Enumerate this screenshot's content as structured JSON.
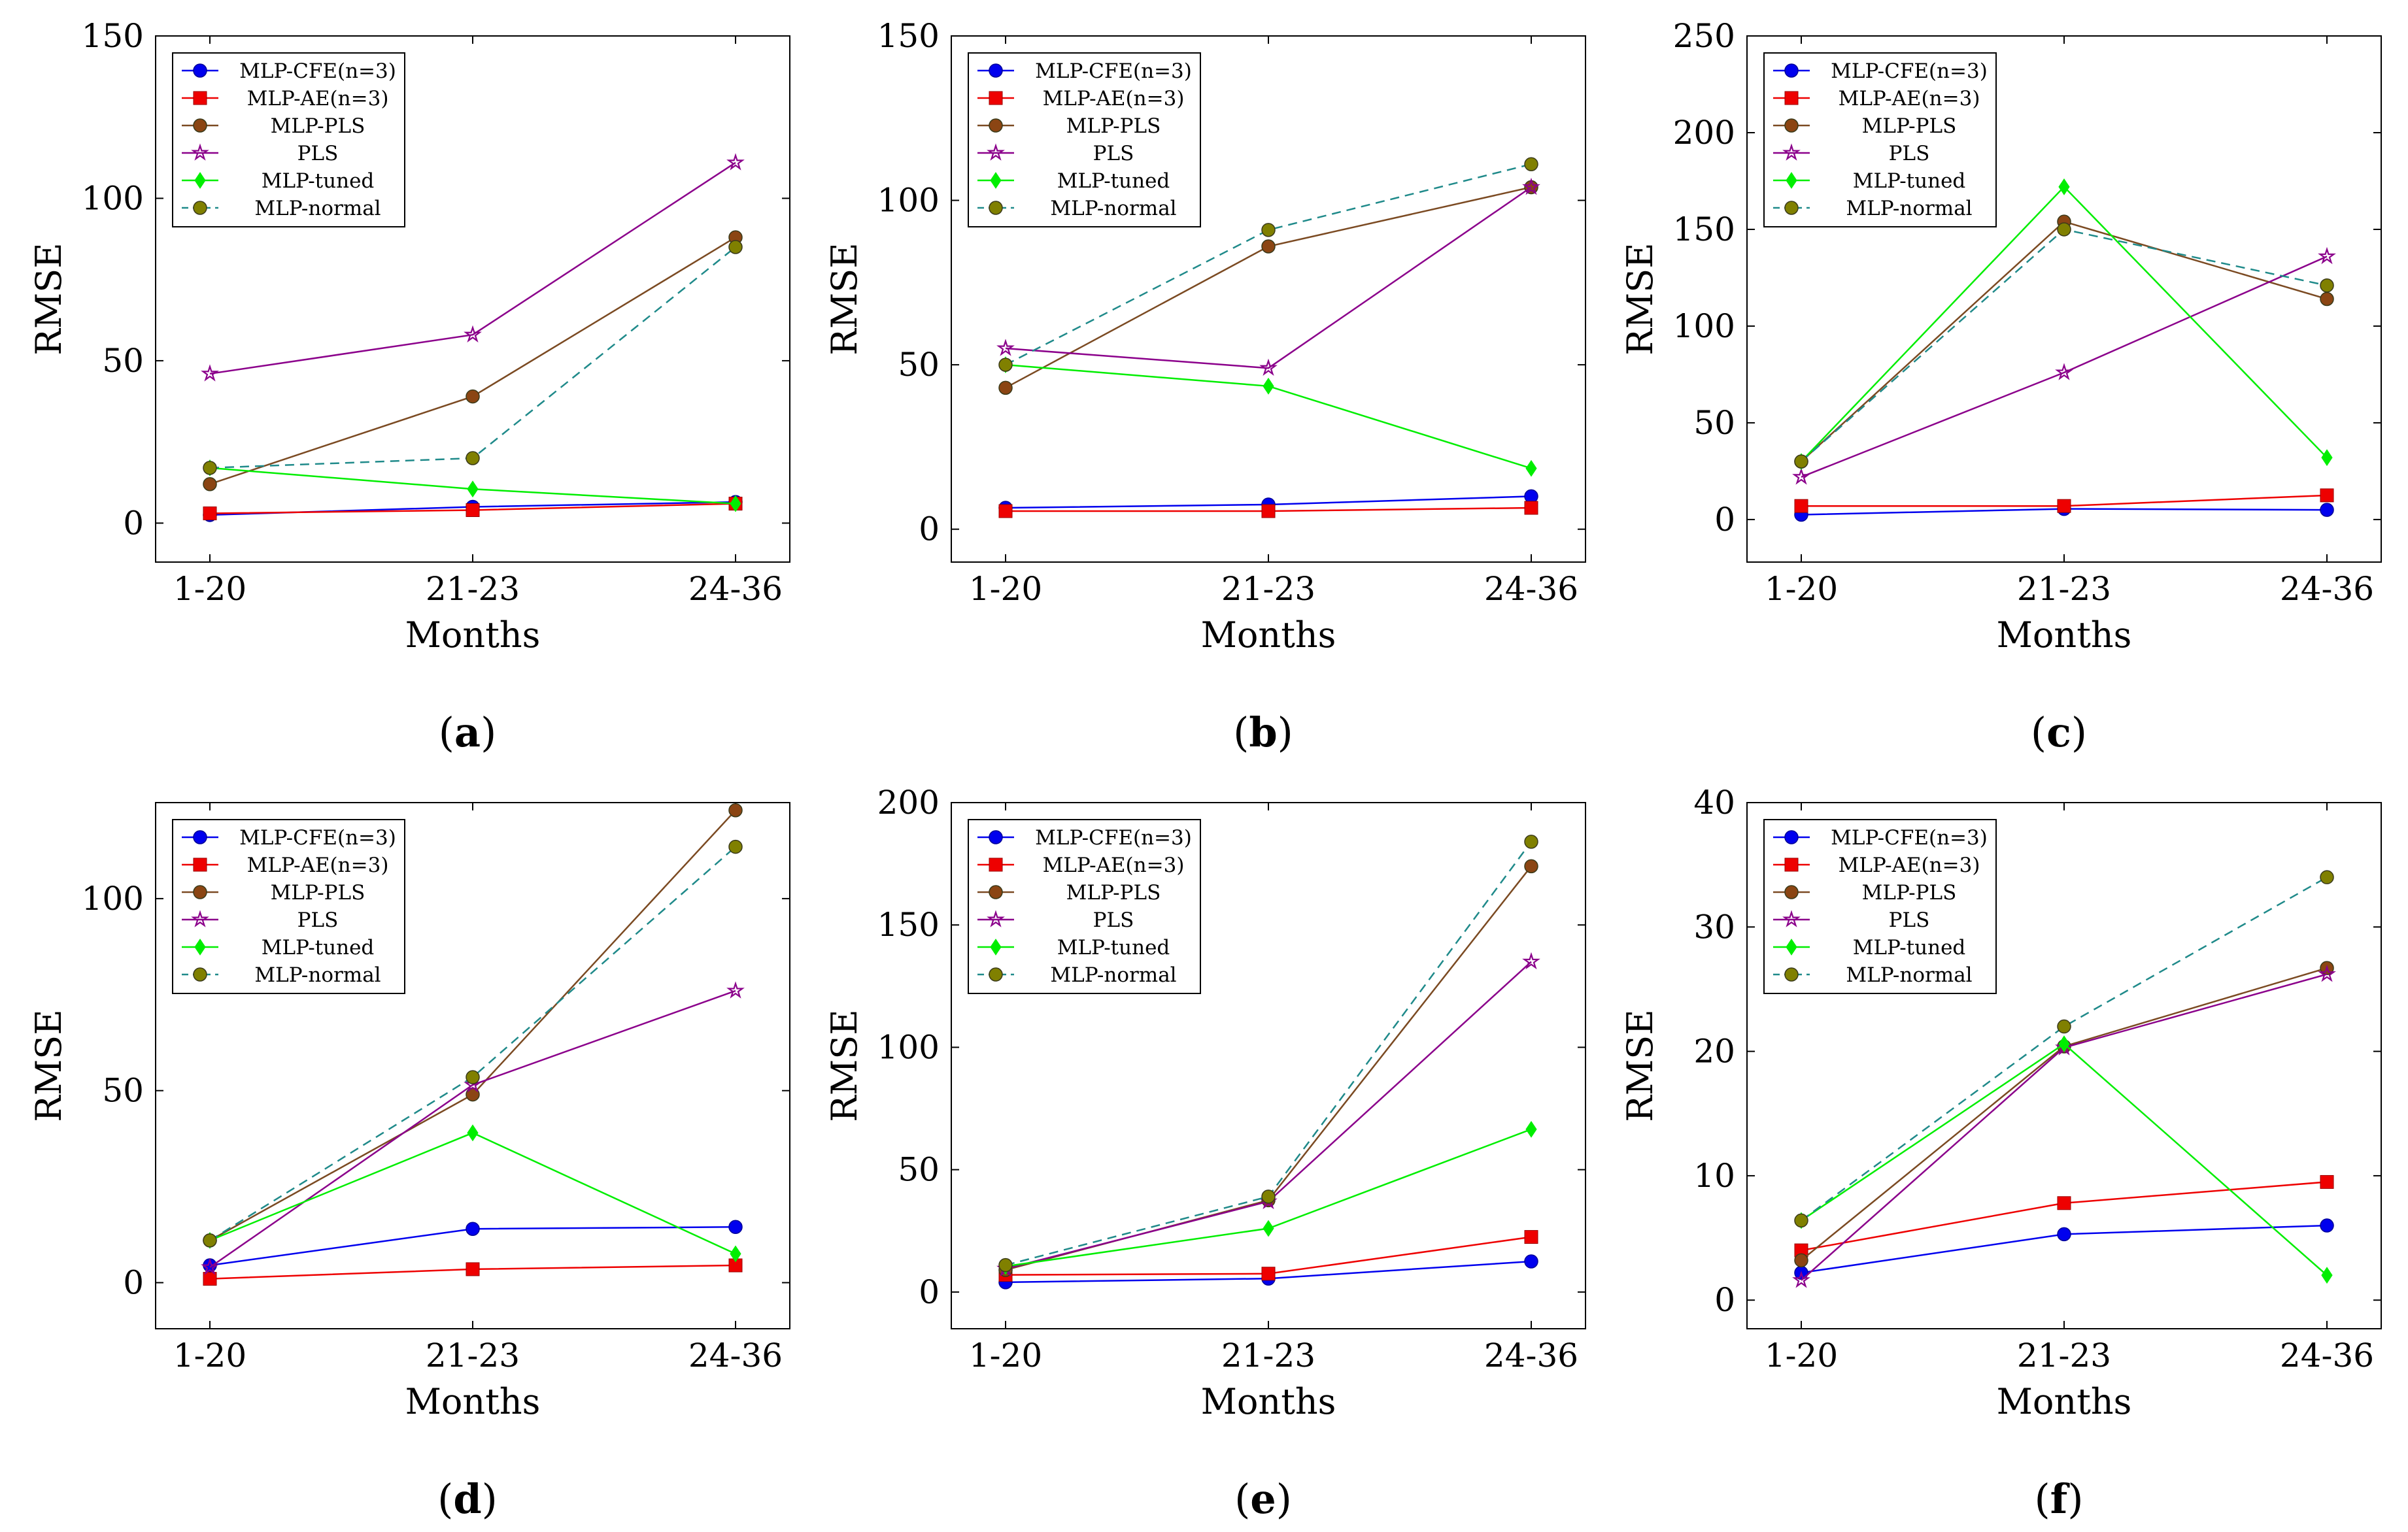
{
  "figure": {
    "background": "#ffffff"
  },
  "style": {
    "colors": {
      "MLP-CFE(n=3)": "#0000ee",
      "MLP-AE(n=3)": "#ee0000",
      "MLP-PLS": "#7b4a22",
      "PLS": "#8b008b",
      "MLP-tuned": "#00ee00",
      "MLP-normal": "#1f8a8a",
      "olive_marker_fill": "#808000",
      "brown_marker_fill": "#8b4513"
    },
    "markers": {
      "MLP-CFE(n=3)": "circle",
      "MLP-AE(n=3)": "square",
      "MLP-PLS": "circle",
      "PLS": "star",
      "MLP-tuned": "diamond",
      "MLP-normal": "circle"
    },
    "dashed": [
      "MLP-normal"
    ]
  },
  "chart_data": [
    {
      "type": "line",
      "panel": "a",
      "caption": {
        "open": "(",
        "letter": "a",
        "close": ")"
      },
      "xlabel": "Months",
      "ylabel": "RMSE",
      "categories": [
        "1-20",
        "21-23",
        "24-36"
      ],
      "ylim": [
        -12,
        150
      ],
      "yticks": [
        0,
        50,
        100,
        150
      ],
      "legend": "top-left",
      "series": [
        {
          "name": "MLP-CFE(n=3)",
          "values": [
            2.5,
            5,
            6.5
          ]
        },
        {
          "name": "MLP-AE(n=3)",
          "values": [
            3,
            4,
            6
          ]
        },
        {
          "name": "MLP-PLS",
          "values": [
            12,
            39,
            88
          ]
        },
        {
          "name": "PLS",
          "values": [
            46,
            58,
            111
          ]
        },
        {
          "name": "MLP-tuned",
          "values": [
            17,
            10.5,
            6
          ]
        },
        {
          "name": "MLP-normal",
          "values": [
            17,
            20,
            85
          ]
        }
      ]
    },
    {
      "type": "line",
      "panel": "b",
      "caption": {
        "open": "(",
        "letter": "b",
        "close": ")"
      },
      "xlabel": "Months",
      "ylabel": "RMSE",
      "categories": [
        "1-20",
        "21-23",
        "24-36"
      ],
      "ylim": [
        -10,
        150
      ],
      "yticks": [
        0,
        50,
        100,
        150
      ],
      "legend": "top-left",
      "series": [
        {
          "name": "MLP-CFE(n=3)",
          "values": [
            6.5,
            7.5,
            10
          ]
        },
        {
          "name": "MLP-AE(n=3)",
          "values": [
            5.5,
            5.5,
            6.5
          ]
        },
        {
          "name": "MLP-PLS",
          "values": [
            43,
            86,
            104
          ]
        },
        {
          "name": "PLS",
          "values": [
            55,
            49,
            104
          ]
        },
        {
          "name": "MLP-tuned",
          "values": [
            50,
            43.5,
            18.5
          ]
        },
        {
          "name": "MLP-normal",
          "values": [
            50,
            91,
            111
          ]
        }
      ]
    },
    {
      "type": "line",
      "panel": "c",
      "caption": {
        "open": "(",
        "letter": "c",
        "close": ")"
      },
      "xlabel": "Months",
      "ylabel": "RMSE",
      "categories": [
        "1-20",
        "21-23",
        "24-36"
      ],
      "ylim": [
        -22,
        250
      ],
      "yticks": [
        0,
        50,
        100,
        150,
        200,
        250
      ],
      "legend": "top-left",
      "series": [
        {
          "name": "MLP-CFE(n=3)",
          "values": [
            2.5,
            5.5,
            5
          ]
        },
        {
          "name": "MLP-AE(n=3)",
          "values": [
            7,
            7,
            12.5
          ]
        },
        {
          "name": "MLP-PLS",
          "values": [
            30,
            154,
            114
          ]
        },
        {
          "name": "PLS",
          "values": [
            22,
            76,
            136
          ]
        },
        {
          "name": "MLP-tuned",
          "values": [
            30,
            172,
            32
          ]
        },
        {
          "name": "MLP-normal",
          "values": [
            30,
            150,
            121
          ]
        }
      ]
    },
    {
      "type": "line",
      "panel": "d",
      "caption": {
        "open": "(",
        "letter": "d",
        "close": ")"
      },
      "xlabel": "Months",
      "ylabel": "RMSE",
      "categories": [
        "1-20",
        "21-23",
        "24-36"
      ],
      "ylim": [
        -12,
        125
      ],
      "yticks": [
        0,
        50,
        100
      ],
      "legend": "top-left",
      "series": [
        {
          "name": "MLP-CFE(n=3)",
          "values": [
            4.5,
            14,
            14.5
          ]
        },
        {
          "name": "MLP-AE(n=3)",
          "values": [
            1,
            3.5,
            4.5
          ]
        },
        {
          "name": "MLP-PLS",
          "values": [
            11,
            49,
            123
          ]
        },
        {
          "name": "PLS",
          "values": [
            4,
            51.5,
            76
          ]
        },
        {
          "name": "MLP-tuned",
          "values": [
            11,
            39,
            7.5
          ]
        },
        {
          "name": "MLP-normal",
          "values": [
            11,
            53.5,
            113.5
          ]
        }
      ]
    },
    {
      "type": "line",
      "panel": "e",
      "caption": {
        "open": "(",
        "letter": "e",
        "close": ")"
      },
      "xlabel": "Months",
      "ylabel": "RMSE",
      "categories": [
        "1-20",
        "21-23",
        "24-36"
      ],
      "ylim": [
        -15,
        200
      ],
      "yticks": [
        0,
        50,
        100,
        150,
        200
      ],
      "legend": "top-left",
      "series": [
        {
          "name": "MLP-CFE(n=3)",
          "values": [
            4,
            5.5,
            12.5
          ]
        },
        {
          "name": "MLP-AE(n=3)",
          "values": [
            7,
            7.5,
            22.5
          ]
        },
        {
          "name": "MLP-PLS",
          "values": [
            9,
            37.5,
            174
          ]
        },
        {
          "name": "PLS",
          "values": [
            9.5,
            37,
            135
          ]
        },
        {
          "name": "MLP-tuned",
          "values": [
            10.5,
            26,
            66.5
          ]
        },
        {
          "name": "MLP-normal",
          "values": [
            11,
            39,
            184
          ]
        }
      ]
    },
    {
      "type": "line",
      "panel": "f",
      "caption": {
        "open": "(",
        "letter": "f",
        "close": ")"
      },
      "xlabel": "Months",
      "ylabel": "RMSE",
      "categories": [
        "1-20",
        "21-23",
        "24-36"
      ],
      "ylim": [
        -2.3,
        40
      ],
      "yticks": [
        0,
        10,
        20,
        30,
        40
      ],
      "legend": "top-left",
      "series": [
        {
          "name": "MLP-CFE(n=3)",
          "values": [
            2.2,
            5.3,
            6
          ]
        },
        {
          "name": "MLP-AE(n=3)",
          "values": [
            4,
            7.8,
            9.5
          ]
        },
        {
          "name": "MLP-PLS",
          "values": [
            3.2,
            20.4,
            26.7
          ]
        },
        {
          "name": "PLS",
          "values": [
            1.6,
            20.3,
            26.2
          ]
        },
        {
          "name": "MLP-tuned",
          "values": [
            6.4,
            20.6,
            2
          ]
        },
        {
          "name": "MLP-normal",
          "values": [
            6.4,
            22,
            34
          ]
        }
      ]
    }
  ]
}
